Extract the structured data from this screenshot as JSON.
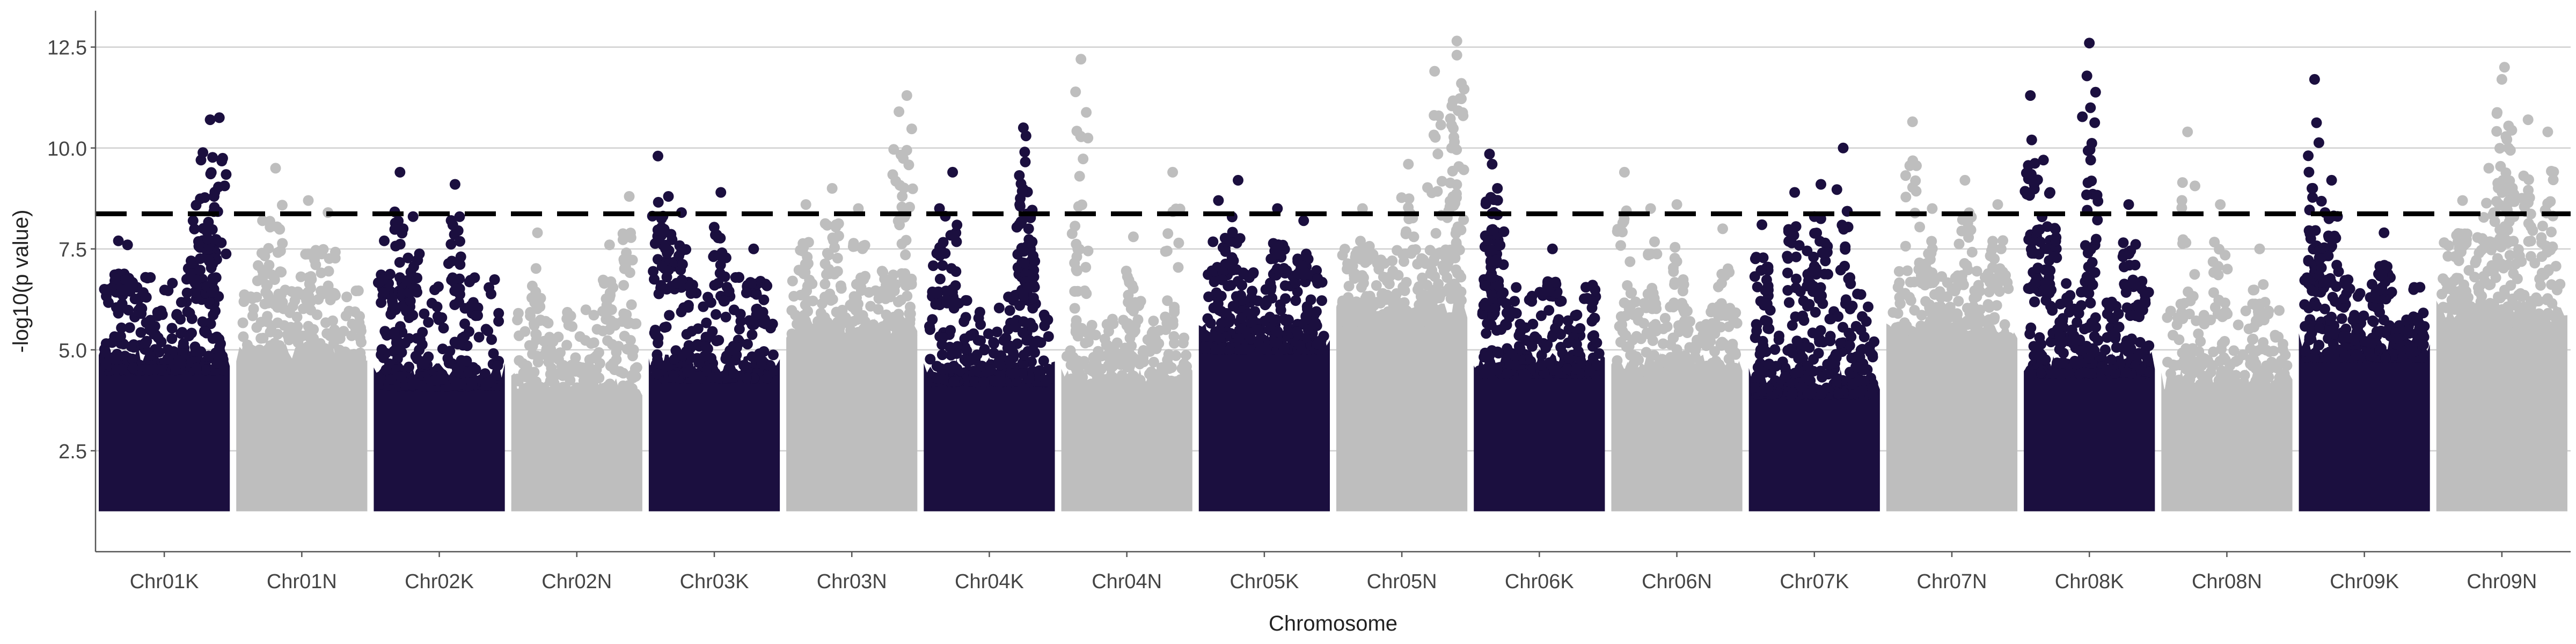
{
  "chart_data": {
    "type": "scatter",
    "title": "",
    "xlabel": "Chromosome",
    "ylabel": "-log10(p value)",
    "ylim": [
      0.0,
      13.4
    ],
    "yticks": [
      2.5,
      5.0,
      7.5,
      10.0,
      12.5
    ],
    "ytick_labels": [
      "2.5",
      "5.0",
      "7.5",
      "10.0",
      "12.5"
    ],
    "threshold": 8.37,
    "grid": "horizontal major",
    "legend": "none",
    "colors": {
      "odd": "#1b0f3f",
      "even": "#bebebe",
      "threshold": "#000000"
    },
    "categories": [
      "Chr01K",
      "Chr01N",
      "Chr02K",
      "Chr02N",
      "Chr03K",
      "Chr03N",
      "Chr04K",
      "Chr04N",
      "Chr05K",
      "Chr05N",
      "Chr06K",
      "Chr06N",
      "Chr07K",
      "Chr07N",
      "Chr08K",
      "Chr08N",
      "Chr09K",
      "Chr09N"
    ],
    "series": [
      {
        "category": "Chr01K",
        "color": "#1b0f3f",
        "band_top": 4.9,
        "cloud_top": 6.8,
        "peaks": [
          [
            0.15,
            7.7
          ],
          [
            0.22,
            7.6
          ],
          [
            0.78,
            9.7
          ],
          [
            0.85,
            10.7
          ],
          [
            0.92,
            10.75
          ],
          [
            0.88,
            8.8
          ],
          [
            0.72,
            8.2
          ]
        ]
      },
      {
        "category": "Chr01N",
        "color": "#bebebe",
        "band_top": 5.0,
        "cloud_top": 6.5,
        "peaks": [
          [
            0.3,
            9.5
          ],
          [
            0.55,
            8.7
          ],
          [
            0.7,
            8.4
          ],
          [
            0.2,
            8.2
          ]
        ]
      },
      {
        "category": "Chr02K",
        "color": "#1b0f3f",
        "band_top": 4.5,
        "cloud_top": 6.8,
        "peaks": [
          [
            0.2,
            9.4
          ],
          [
            0.62,
            9.1
          ],
          [
            0.3,
            8.3
          ],
          [
            0.08,
            7.7
          ]
        ]
      },
      {
        "category": "Chr02N",
        "color": "#bebebe",
        "band_top": 4.2,
        "cloud_top": 6.0,
        "peaks": [
          [
            0.9,
            8.8
          ],
          [
            0.2,
            7.9
          ],
          [
            0.75,
            7.6
          ]
        ]
      },
      {
        "category": "Chr03K",
        "color": "#1b0f3f",
        "band_top": 4.7,
        "cloud_top": 6.8,
        "peaks": [
          [
            0.07,
            9.8
          ],
          [
            0.15,
            8.8
          ],
          [
            0.55,
            8.9
          ],
          [
            0.25,
            8.4
          ],
          [
            0.8,
            7.5
          ]
        ]
      },
      {
        "category": "Chr03N",
        "color": "#bebebe",
        "band_top": 5.6,
        "cloud_top": 7.0,
        "peaks": [
          [
            0.92,
            11.3
          ],
          [
            0.86,
            10.9
          ],
          [
            0.35,
            9.0
          ],
          [
            0.15,
            8.6
          ],
          [
            0.55,
            8.5
          ]
        ]
      },
      {
        "category": "Chr04K",
        "color": "#1b0f3f",
        "band_top": 4.6,
        "cloud_top": 6.5,
        "peaks": [
          [
            0.22,
            9.4
          ],
          [
            0.76,
            10.5
          ],
          [
            0.78,
            10.3
          ],
          [
            0.77,
            9.9
          ],
          [
            0.12,
            8.5
          ],
          [
            0.8,
            8.0
          ]
        ]
      },
      {
        "category": "Chr04N",
        "color": "#bebebe",
        "band_top": 4.4,
        "cloud_top": 5.8,
        "peaks": [
          [
            0.15,
            12.2
          ],
          [
            0.14,
            9.3
          ],
          [
            0.85,
            9.4
          ],
          [
            0.55,
            7.8
          ]
        ]
      },
      {
        "category": "Chr05K",
        "color": "#1b0f3f",
        "band_top": 5.4,
        "cloud_top": 7.0,
        "peaks": [
          [
            0.3,
            9.2
          ],
          [
            0.15,
            8.7
          ],
          [
            0.6,
            8.5
          ],
          [
            0.8,
            8.2
          ]
        ]
      },
      {
        "category": "Chr05N",
        "color": "#bebebe",
        "band_top": 6.1,
        "cloud_top": 7.5,
        "peaks": [
          [
            0.92,
            12.65
          ],
          [
            0.92,
            12.3
          ],
          [
            0.75,
            11.9
          ],
          [
            0.88,
            10.0
          ],
          [
            0.55,
            9.6
          ],
          [
            0.2,
            8.5
          ]
        ]
      },
      {
        "category": "Chr06K",
        "color": "#1b0f3f",
        "band_top": 4.8,
        "cloud_top": 6.7,
        "peaks": [
          [
            0.12,
            9.85
          ],
          [
            0.14,
            9.6
          ],
          [
            0.18,
            9.0
          ],
          [
            0.6,
            7.5
          ]
        ]
      },
      {
        "category": "Chr06N",
        "color": "#bebebe",
        "band_top": 4.7,
        "cloud_top": 6.2,
        "peaks": [
          [
            0.1,
            9.4
          ],
          [
            0.5,
            8.6
          ],
          [
            0.3,
            8.5
          ],
          [
            0.85,
            8.0
          ]
        ]
      },
      {
        "category": "Chr07K",
        "color": "#1b0f3f",
        "band_top": 4.3,
        "cloud_top": 6.5,
        "peaks": [
          [
            0.72,
            10.0
          ],
          [
            0.55,
            9.1
          ],
          [
            0.35,
            8.9
          ],
          [
            0.1,
            8.1
          ],
          [
            0.5,
            8.3
          ]
        ]
      },
      {
        "category": "Chr07N",
        "color": "#bebebe",
        "band_top": 5.5,
        "cloud_top": 7.0,
        "peaks": [
          [
            0.2,
            10.65
          ],
          [
            0.6,
            9.2
          ],
          [
            0.35,
            8.5
          ],
          [
            0.85,
            8.6
          ]
        ]
      },
      {
        "category": "Chr08K",
        "color": "#1b0f3f",
        "band_top": 4.8,
        "cloud_top": 6.8,
        "peaks": [
          [
            0.5,
            12.6
          ],
          [
            0.05,
            11.3
          ],
          [
            0.06,
            10.2
          ],
          [
            0.51,
            9.7
          ],
          [
            0.15,
            9.7
          ],
          [
            0.2,
            8.9
          ],
          [
            0.8,
            8.6
          ]
        ]
      },
      {
        "category": "Chr08N",
        "color": "#bebebe",
        "band_top": 4.3,
        "cloud_top": 6.0,
        "peaks": [
          [
            0.2,
            10.4
          ],
          [
            0.45,
            8.6
          ],
          [
            0.75,
            7.5
          ]
        ]
      },
      {
        "category": "Chr09K",
        "color": "#1b0f3f",
        "band_top": 5.2,
        "cloud_top": 6.8,
        "peaks": [
          [
            0.12,
            11.7
          ],
          [
            0.25,
            9.2
          ],
          [
            0.1,
            9.0
          ],
          [
            0.65,
            7.9
          ],
          [
            0.2,
            8.4
          ]
        ]
      },
      {
        "category": "Chr09N",
        "color": "#bebebe",
        "band_top": 6.0,
        "cloud_top": 7.8,
        "peaks": [
          [
            0.52,
            12.0
          ],
          [
            0.5,
            11.7
          ],
          [
            0.7,
            10.7
          ],
          [
            0.55,
            10.0
          ],
          [
            0.85,
            10.4
          ],
          [
            0.2,
            8.7
          ],
          [
            0.4,
            9.5
          ]
        ]
      }
    ]
  }
}
